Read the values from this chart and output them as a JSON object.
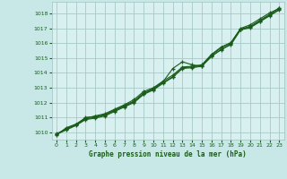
{
  "bg_color": "#c8e8e8",
  "plot_bg_color": "#d8f0f0",
  "grid_color": "#a8c8c8",
  "line_color": "#1a5c1a",
  "marker_color": "#1a5c1a",
  "title": "Graphe pression niveau de la mer (hPa)",
  "title_color": "#1a5c1a",
  "tick_color": "#1a5c1a",
  "xlim": [
    -0.5,
    23.5
  ],
  "ylim": [
    1009.5,
    1018.8
  ],
  "yticks": [
    1010,
    1011,
    1012,
    1013,
    1014,
    1015,
    1016,
    1017,
    1018
  ],
  "xticks": [
    0,
    1,
    2,
    3,
    4,
    5,
    6,
    7,
    8,
    9,
    10,
    11,
    12,
    13,
    14,
    15,
    16,
    17,
    18,
    19,
    20,
    21,
    22,
    23
  ],
  "line1": [
    1009.8,
    1010.3,
    1010.55,
    1010.95,
    1011.1,
    1011.25,
    1011.55,
    1011.85,
    1012.2,
    1012.75,
    1013.0,
    1013.45,
    1013.85,
    1014.4,
    1014.45,
    1014.55,
    1015.25,
    1015.75,
    1016.05,
    1017.0,
    1017.25,
    1017.65,
    1018.05,
    1018.35
  ],
  "line2": [
    1009.85,
    1010.25,
    1010.5,
    1011.0,
    1011.05,
    1011.2,
    1011.5,
    1011.8,
    1012.1,
    1012.65,
    1012.95,
    1013.4,
    1014.3,
    1014.75,
    1014.55,
    1014.45,
    1015.15,
    1015.55,
    1015.95,
    1016.95,
    1017.15,
    1017.55,
    1017.95,
    1018.4
  ],
  "line3": [
    1009.9,
    1010.2,
    1010.5,
    1010.9,
    1011.0,
    1011.15,
    1011.45,
    1011.75,
    1012.05,
    1012.6,
    1012.9,
    1013.35,
    1013.75,
    1014.35,
    1014.4,
    1014.5,
    1015.2,
    1015.7,
    1016.0,
    1016.95,
    1017.1,
    1017.5,
    1017.9,
    1018.3
  ],
  "line4": [
    1009.85,
    1010.15,
    1010.45,
    1010.85,
    1010.95,
    1011.1,
    1011.4,
    1011.7,
    1012.0,
    1012.55,
    1012.85,
    1013.3,
    1013.7,
    1014.3,
    1014.35,
    1014.45,
    1015.1,
    1015.6,
    1015.9,
    1016.9,
    1017.05,
    1017.45,
    1017.85,
    1018.25
  ]
}
